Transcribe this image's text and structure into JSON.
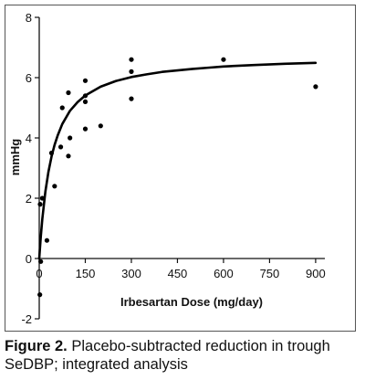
{
  "chart_data": {
    "type": "scatter",
    "xlabel": "Irbesartan Dose (mg/day)",
    "ylabel": "mmHg",
    "xlim": [
      0,
      930
    ],
    "ylim": [
      -2,
      8
    ],
    "x_ticks": [
      0,
      150,
      300,
      450,
      600,
      750,
      900
    ],
    "x_tick_labels": [
      "0",
      "150",
      "300",
      "450",
      "600",
      "750",
      "900"
    ],
    "y_ticks": [
      -2,
      0,
      2,
      4,
      6,
      8
    ],
    "y_tick_labels": [
      "-2",
      "0",
      "2",
      "4",
      "6",
      "8"
    ],
    "grid": false,
    "series": [
      {
        "kind": "points",
        "x": [
          2,
          5,
          3,
          10,
          25,
          40,
          50,
          70,
          75,
          95,
          95,
          100,
          150,
          150,
          150,
          150,
          200,
          300,
          300,
          300,
          600,
          900
        ],
        "y": [
          -1.2,
          -0.1,
          1.8,
          2.0,
          0.6,
          3.5,
          2.4,
          3.7,
          5.0,
          3.4,
          5.5,
          4.0,
          5.9,
          5.4,
          5.2,
          4.3,
          4.4,
          6.6,
          6.2,
          5.3,
          6.6,
          5.7
        ]
      },
      {
        "kind": "curve",
        "x": [
          0,
          5,
          10,
          20,
          30,
          40,
          50,
          60,
          75,
          100,
          125,
          150,
          200,
          250,
          300,
          350,
          400,
          450,
          500,
          550,
          600,
          700,
          800,
          900
        ],
        "y": [
          0.0,
          0.72,
          1.31,
          2.22,
          2.88,
          3.38,
          3.77,
          4.08,
          4.46,
          4.9,
          5.19,
          5.41,
          5.7,
          5.89,
          6.02,
          6.11,
          6.19,
          6.24,
          6.29,
          6.33,
          6.37,
          6.42,
          6.46,
          6.49
        ]
      }
    ]
  },
  "caption": {
    "label": "Figure 2.",
    "text": "Placebo-subtracted reduction in trough SeDBP; integrated analysis"
  }
}
